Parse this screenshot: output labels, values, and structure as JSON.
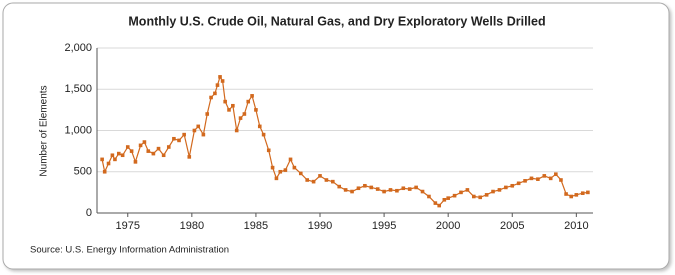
{
  "chart_data": {
    "type": "line",
    "title": "Monthly U.S. Crude Oil, Natural Gas, and Dry Exploratory Wells Drilled",
    "y_label": "Number of Elements",
    "source": "Source: U.S. Energy Information Administration",
    "x": [
      1973.0,
      1973.2,
      1973.5,
      1973.8,
      1974.0,
      1974.3,
      1974.6,
      1975.0,
      1975.3,
      1975.6,
      1976.0,
      1976.3,
      1976.6,
      1977.0,
      1977.4,
      1977.8,
      1978.2,
      1978.6,
      1979.0,
      1979.4,
      1979.8,
      1980.2,
      1980.5,
      1980.9,
      1981.2,
      1981.5,
      1981.8,
      1982.0,
      1982.2,
      1982.4,
      1982.6,
      1982.9,
      1983.2,
      1983.5,
      1983.8,
      1984.1,
      1984.4,
      1984.7,
      1985.0,
      1985.3,
      1985.6,
      1986.0,
      1986.3,
      1986.6,
      1986.9,
      1987.3,
      1987.7,
      1988.0,
      1988.5,
      1989.0,
      1989.5,
      1990.0,
      1990.5,
      1991.0,
      1991.5,
      1992.0,
      1992.5,
      1993.0,
      1993.5,
      1994.0,
      1994.5,
      1995.0,
      1995.5,
      1996.0,
      1996.5,
      1997.0,
      1997.5,
      1998.0,
      1998.5,
      1999.0,
      1999.3,
      1999.7,
      2000.0,
      2000.5,
      2001.0,
      2001.5,
      2002.0,
      2002.5,
      2003.0,
      2003.5,
      2004.0,
      2004.5,
      2005.0,
      2005.5,
      2006.0,
      2006.5,
      2007.0,
      2007.5,
      2008.0,
      2008.4,
      2008.8,
      2009.2,
      2009.6,
      2010.0,
      2010.5,
      2010.9
    ],
    "series": [
      {
        "name": "Exploratory Wells",
        "color": "#d2691e",
        "values": [
          650,
          500,
          600,
          700,
          650,
          720,
          700,
          800,
          750,
          620,
          820,
          860,
          750,
          720,
          780,
          700,
          800,
          900,
          880,
          950,
          680,
          1000,
          1050,
          950,
          1200,
          1400,
          1450,
          1550,
          1650,
          1600,
          1350,
          1250,
          1300,
          1000,
          1150,
          1200,
          1350,
          1420,
          1250,
          1050,
          950,
          760,
          550,
          420,
          500,
          520,
          650,
          550,
          480,
          400,
          380,
          450,
          400,
          380,
          320,
          280,
          260,
          300,
          330,
          310,
          290,
          260,
          280,
          270,
          300,
          290,
          310,
          260,
          200,
          120,
          90,
          160,
          180,
          210,
          250,
          280,
          200,
          190,
          220,
          260,
          280,
          310,
          330,
          360,
          390,
          420,
          410,
          450,
          420,
          470,
          400,
          230,
          200,
          220,
          240,
          250
        ]
      }
    ],
    "xlim": [
      1972.6,
      2011.3
    ],
    "xticks": [
      1975,
      1980,
      1985,
      1990,
      1995,
      2000,
      2005,
      2010
    ],
    "ylim": [
      0,
      2000
    ],
    "yticks": [
      0,
      500,
      {
        "value": 1000,
        "label": "1,000"
      },
      {
        "value": 1500,
        "label": "1,500"
      },
      {
        "value": 2000,
        "label": "2,000"
      }
    ],
    "grid": true
  }
}
